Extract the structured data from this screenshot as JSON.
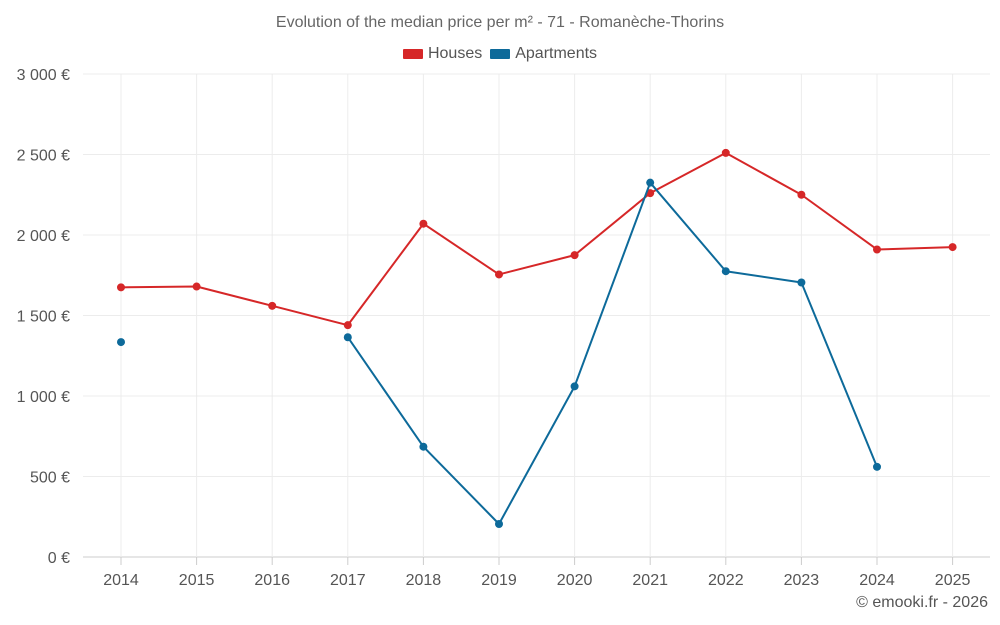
{
  "chart_data": {
    "type": "line",
    "title": "Evolution of the median price per m² - 71 - Romanèche-Thorins",
    "xlabel": "",
    "ylabel": "",
    "categories": [
      "2014",
      "2015",
      "2016",
      "2017",
      "2018",
      "2019",
      "2020",
      "2021",
      "2022",
      "2023",
      "2024",
      "2025"
    ],
    "ylim": [
      0,
      3000
    ],
    "yticks": [
      0,
      500,
      1000,
      1500,
      2000,
      2500,
      3000
    ],
    "ytick_labels": [
      "0 €",
      "500 €",
      "1 000 €",
      "1 500 €",
      "2 000 €",
      "2 500 €",
      "3 000 €"
    ],
    "grid": true,
    "legend_position": "top-center",
    "series": [
      {
        "name": "Houses",
        "color": "#d62728",
        "values": [
          1675,
          1680,
          1560,
          1440,
          2070,
          1755,
          1875,
          2260,
          2510,
          2250,
          1910,
          1925
        ]
      },
      {
        "name": "Apartments",
        "color": "#0d6a9a",
        "values": [
          1335,
          null,
          null,
          1365,
          685,
          205,
          1060,
          2325,
          1775,
          1705,
          560,
          null
        ]
      }
    ]
  },
  "credit": "© emooki.fr - 2026"
}
